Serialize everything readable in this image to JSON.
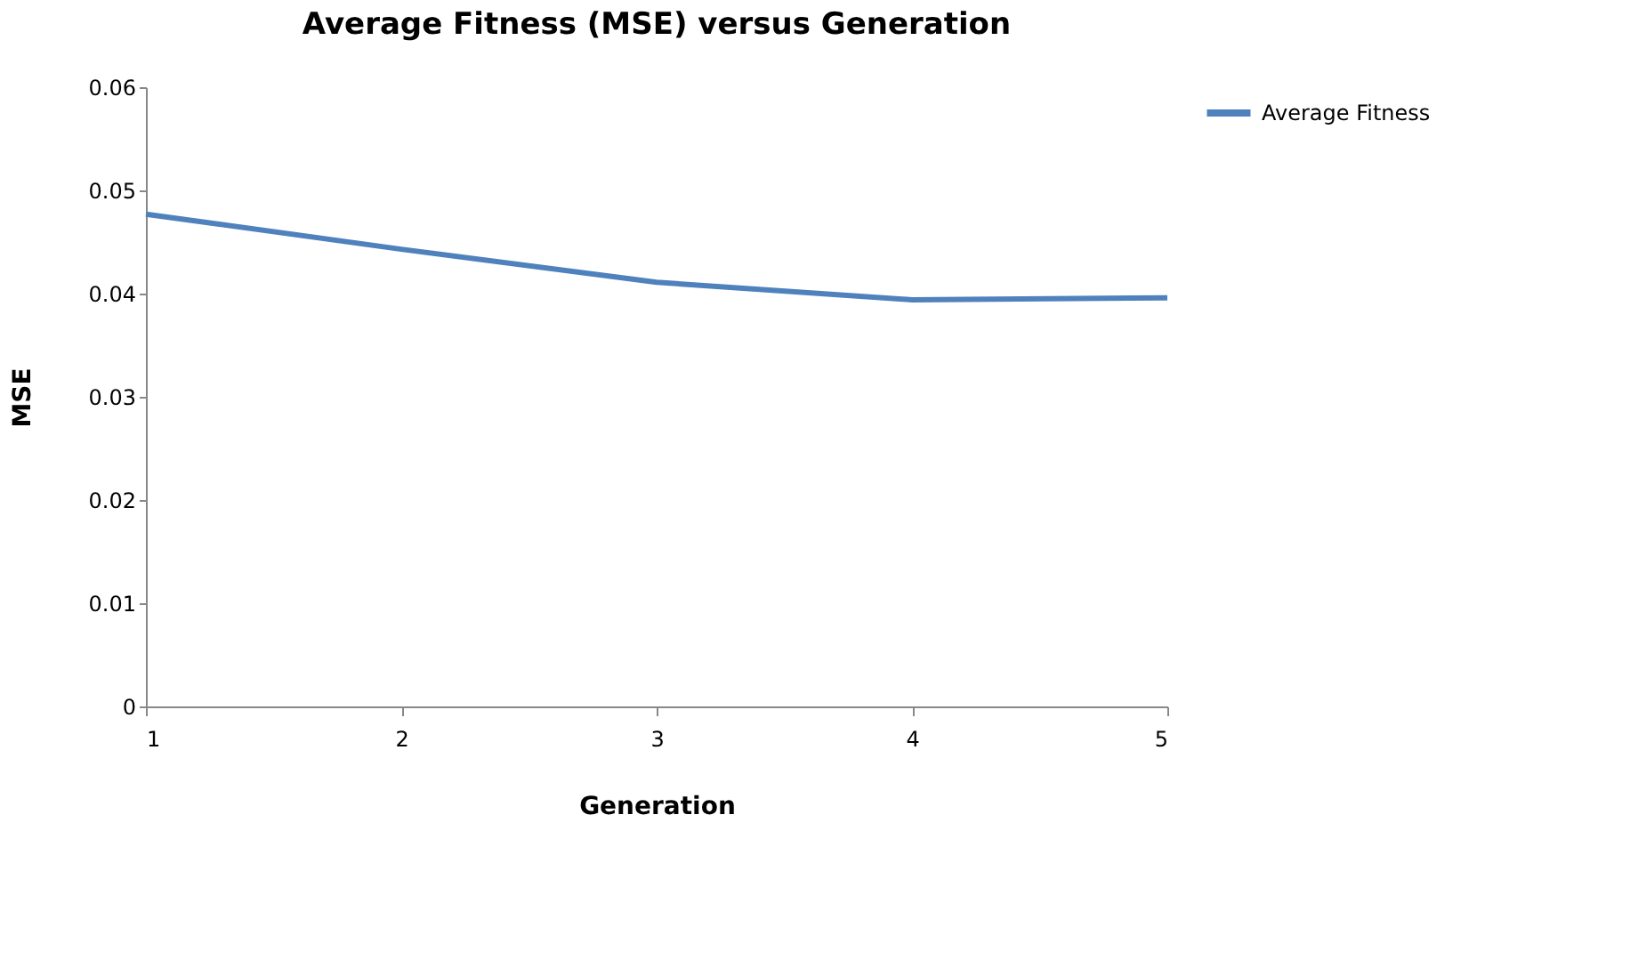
{
  "chart_data": {
    "type": "line",
    "title": "Average Fitness (MSE) versus Generation",
    "xlabel": "Generation",
    "ylabel": "MSE",
    "x": [
      1,
      2,
      3,
      4,
      5
    ],
    "series": [
      {
        "name": "Average Fitness",
        "color": "#4f81bd",
        "values": [
          0.0477,
          0.0443,
          0.0411,
          0.0394,
          0.0396
        ]
      }
    ],
    "xlim": [
      1,
      5
    ],
    "xticks": [
      1,
      2,
      3,
      4,
      5
    ],
    "ylim": [
      0,
      0.06
    ],
    "yticks": [
      0,
      0.01,
      0.02,
      0.03,
      0.04,
      0.05,
      0.06
    ],
    "grid": false,
    "legend": "right",
    "marker": "none",
    "line_style": "solid"
  }
}
